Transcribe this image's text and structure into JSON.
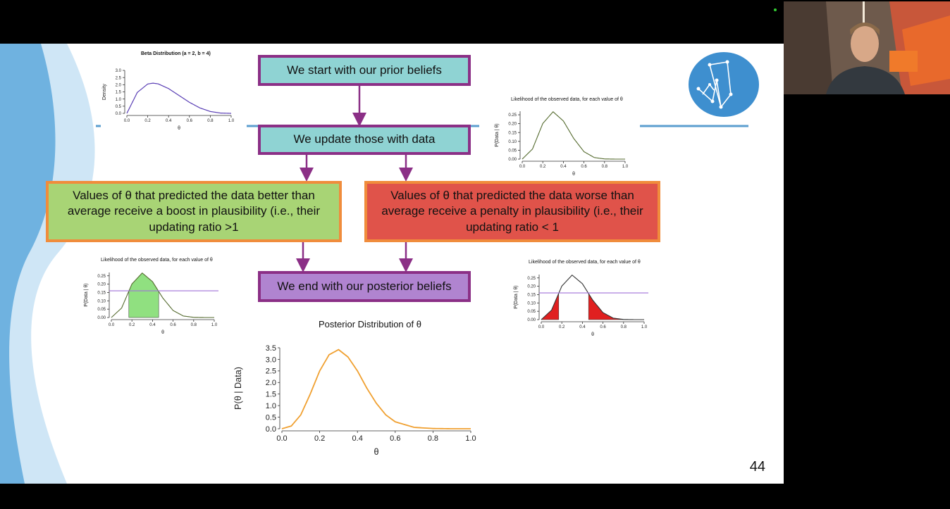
{
  "flow": {
    "prior": "We start with our prior beliefs",
    "update": "We update those with data",
    "boost": "Values of θ that predicted the data better than average receive a boost in plausibility (i.e., their updating ratio >1",
    "penalty": "Values of θ that predicted the data worse than average receive a penalty in plausibility (i.e., their updating ratio < 1",
    "posterior": "We end with our posterior beliefs"
  },
  "page_number": "44",
  "colors": {
    "flow_border": "#8b2f86",
    "teal_fill": "#8fd3d3",
    "purple_fill": "#b084d0",
    "green_fill": "#a8d475",
    "red_fill": "#e0534a",
    "orange_border": "#f08c3c",
    "divider_blue": "#5b9ecf",
    "prior_curve": "#5a3fb5",
    "posterior_curve": "#f0a030",
    "average_line": "#a070d8"
  },
  "icons": {
    "logo": "network-graph-logo-icon",
    "webcam": "presenter-webcam-video"
  },
  "chart_data": [
    {
      "id": "prior",
      "type": "line",
      "title": "Beta Distribution (a = 2, b = 4)",
      "xlabel": "θ",
      "ylabel": "Density",
      "xlim": [
        0,
        1
      ],
      "ylim": [
        0,
        3.0
      ],
      "xticks": [
        "0.0",
        "0.2",
        "0.4",
        "0.6",
        "0.8",
        "1.0"
      ],
      "yticks": [
        "0.0",
        "0.5",
        "1.0",
        "1.5",
        "2.0",
        "2.5",
        "3.0"
      ],
      "x": [
        0,
        0.1,
        0.2,
        0.25,
        0.3,
        0.4,
        0.5,
        0.6,
        0.7,
        0.8,
        0.9,
        1.0
      ],
      "y": [
        0,
        1.46,
        2.05,
        2.11,
        2.06,
        1.73,
        1.25,
        0.77,
        0.38,
        0.13,
        0.02,
        0
      ]
    },
    {
      "id": "likelihood",
      "type": "line",
      "title": "Likelihood of the observed data, for each value of θ",
      "xlabel": "θ",
      "ylabel": "P(Data | θ)",
      "xlim": [
        0,
        1
      ],
      "ylim": [
        0,
        0.27
      ],
      "xticks": [
        "0.0",
        "0.2",
        "0.4",
        "0.6",
        "0.8",
        "1.0"
      ],
      "yticks": [
        "0.00",
        "0.05",
        "0.10",
        "0.15",
        "0.20",
        "0.25"
      ],
      "x": [
        0,
        0.1,
        0.2,
        0.3,
        0.4,
        0.5,
        0.6,
        0.7,
        0.8,
        0.9,
        1.0
      ],
      "y": [
        0,
        0.057,
        0.201,
        0.267,
        0.215,
        0.117,
        0.042,
        0.009,
        0.001,
        0,
        0
      ]
    },
    {
      "id": "likelihood_boost",
      "type": "area",
      "title": "Likelihood of the observed data, for each value of θ",
      "xlabel": "θ",
      "ylabel": "P(Data | θ)",
      "xlim": [
        0,
        1
      ],
      "ylim": [
        0,
        0.27
      ],
      "xticks": [
        "0.0",
        "0.2",
        "0.4",
        "0.6",
        "0.8",
        "1.0"
      ],
      "yticks": [
        "0.00",
        "0.05",
        "0.10",
        "0.15",
        "0.20",
        "0.25"
      ],
      "average_line": 0.16,
      "shaded_range": [
        0.17,
        0.46
      ],
      "shade_color": "#90e080"
    },
    {
      "id": "likelihood_penalty",
      "type": "area",
      "title": "Likelihood of the observed data, for each value of θ",
      "xlabel": "θ",
      "ylabel": "P(Data | θ)",
      "xlim": [
        0,
        1
      ],
      "ylim": [
        0,
        0.27
      ],
      "xticks": [
        "0.0",
        "0.2",
        "0.4",
        "0.6",
        "0.8",
        "1.0"
      ],
      "yticks": [
        "0.00",
        "0.05",
        "0.10",
        "0.15",
        "0.20",
        "0.25"
      ],
      "average_line": 0.16,
      "shaded_ranges": [
        [
          0,
          0.17
        ],
        [
          0.46,
          1.0
        ]
      ],
      "shade_color": "#e02020"
    },
    {
      "id": "posterior",
      "type": "line",
      "title": "Posterior Distribution of θ",
      "xlabel": "θ",
      "ylabel": "P(θ | Data)",
      "xlim": [
        0,
        1
      ],
      "ylim": [
        0,
        3.5
      ],
      "xticks": [
        "0.0",
        "0.2",
        "0.4",
        "0.6",
        "0.8",
        "1.0"
      ],
      "yticks": [
        "0.0",
        "0.5",
        "1.0",
        "1.5",
        "2.0",
        "2.5",
        "3.0",
        "3.5"
      ],
      "x": [
        0,
        0.05,
        0.1,
        0.15,
        0.2,
        0.25,
        0.3,
        0.35,
        0.4,
        0.45,
        0.5,
        0.55,
        0.6,
        0.7,
        0.8,
        0.9,
        1.0
      ],
      "y": [
        0,
        0.12,
        0.6,
        1.5,
        2.5,
        3.2,
        3.42,
        3.1,
        2.5,
        1.75,
        1.1,
        0.6,
        0.3,
        0.06,
        0.01,
        0,
        0
      ]
    }
  ]
}
